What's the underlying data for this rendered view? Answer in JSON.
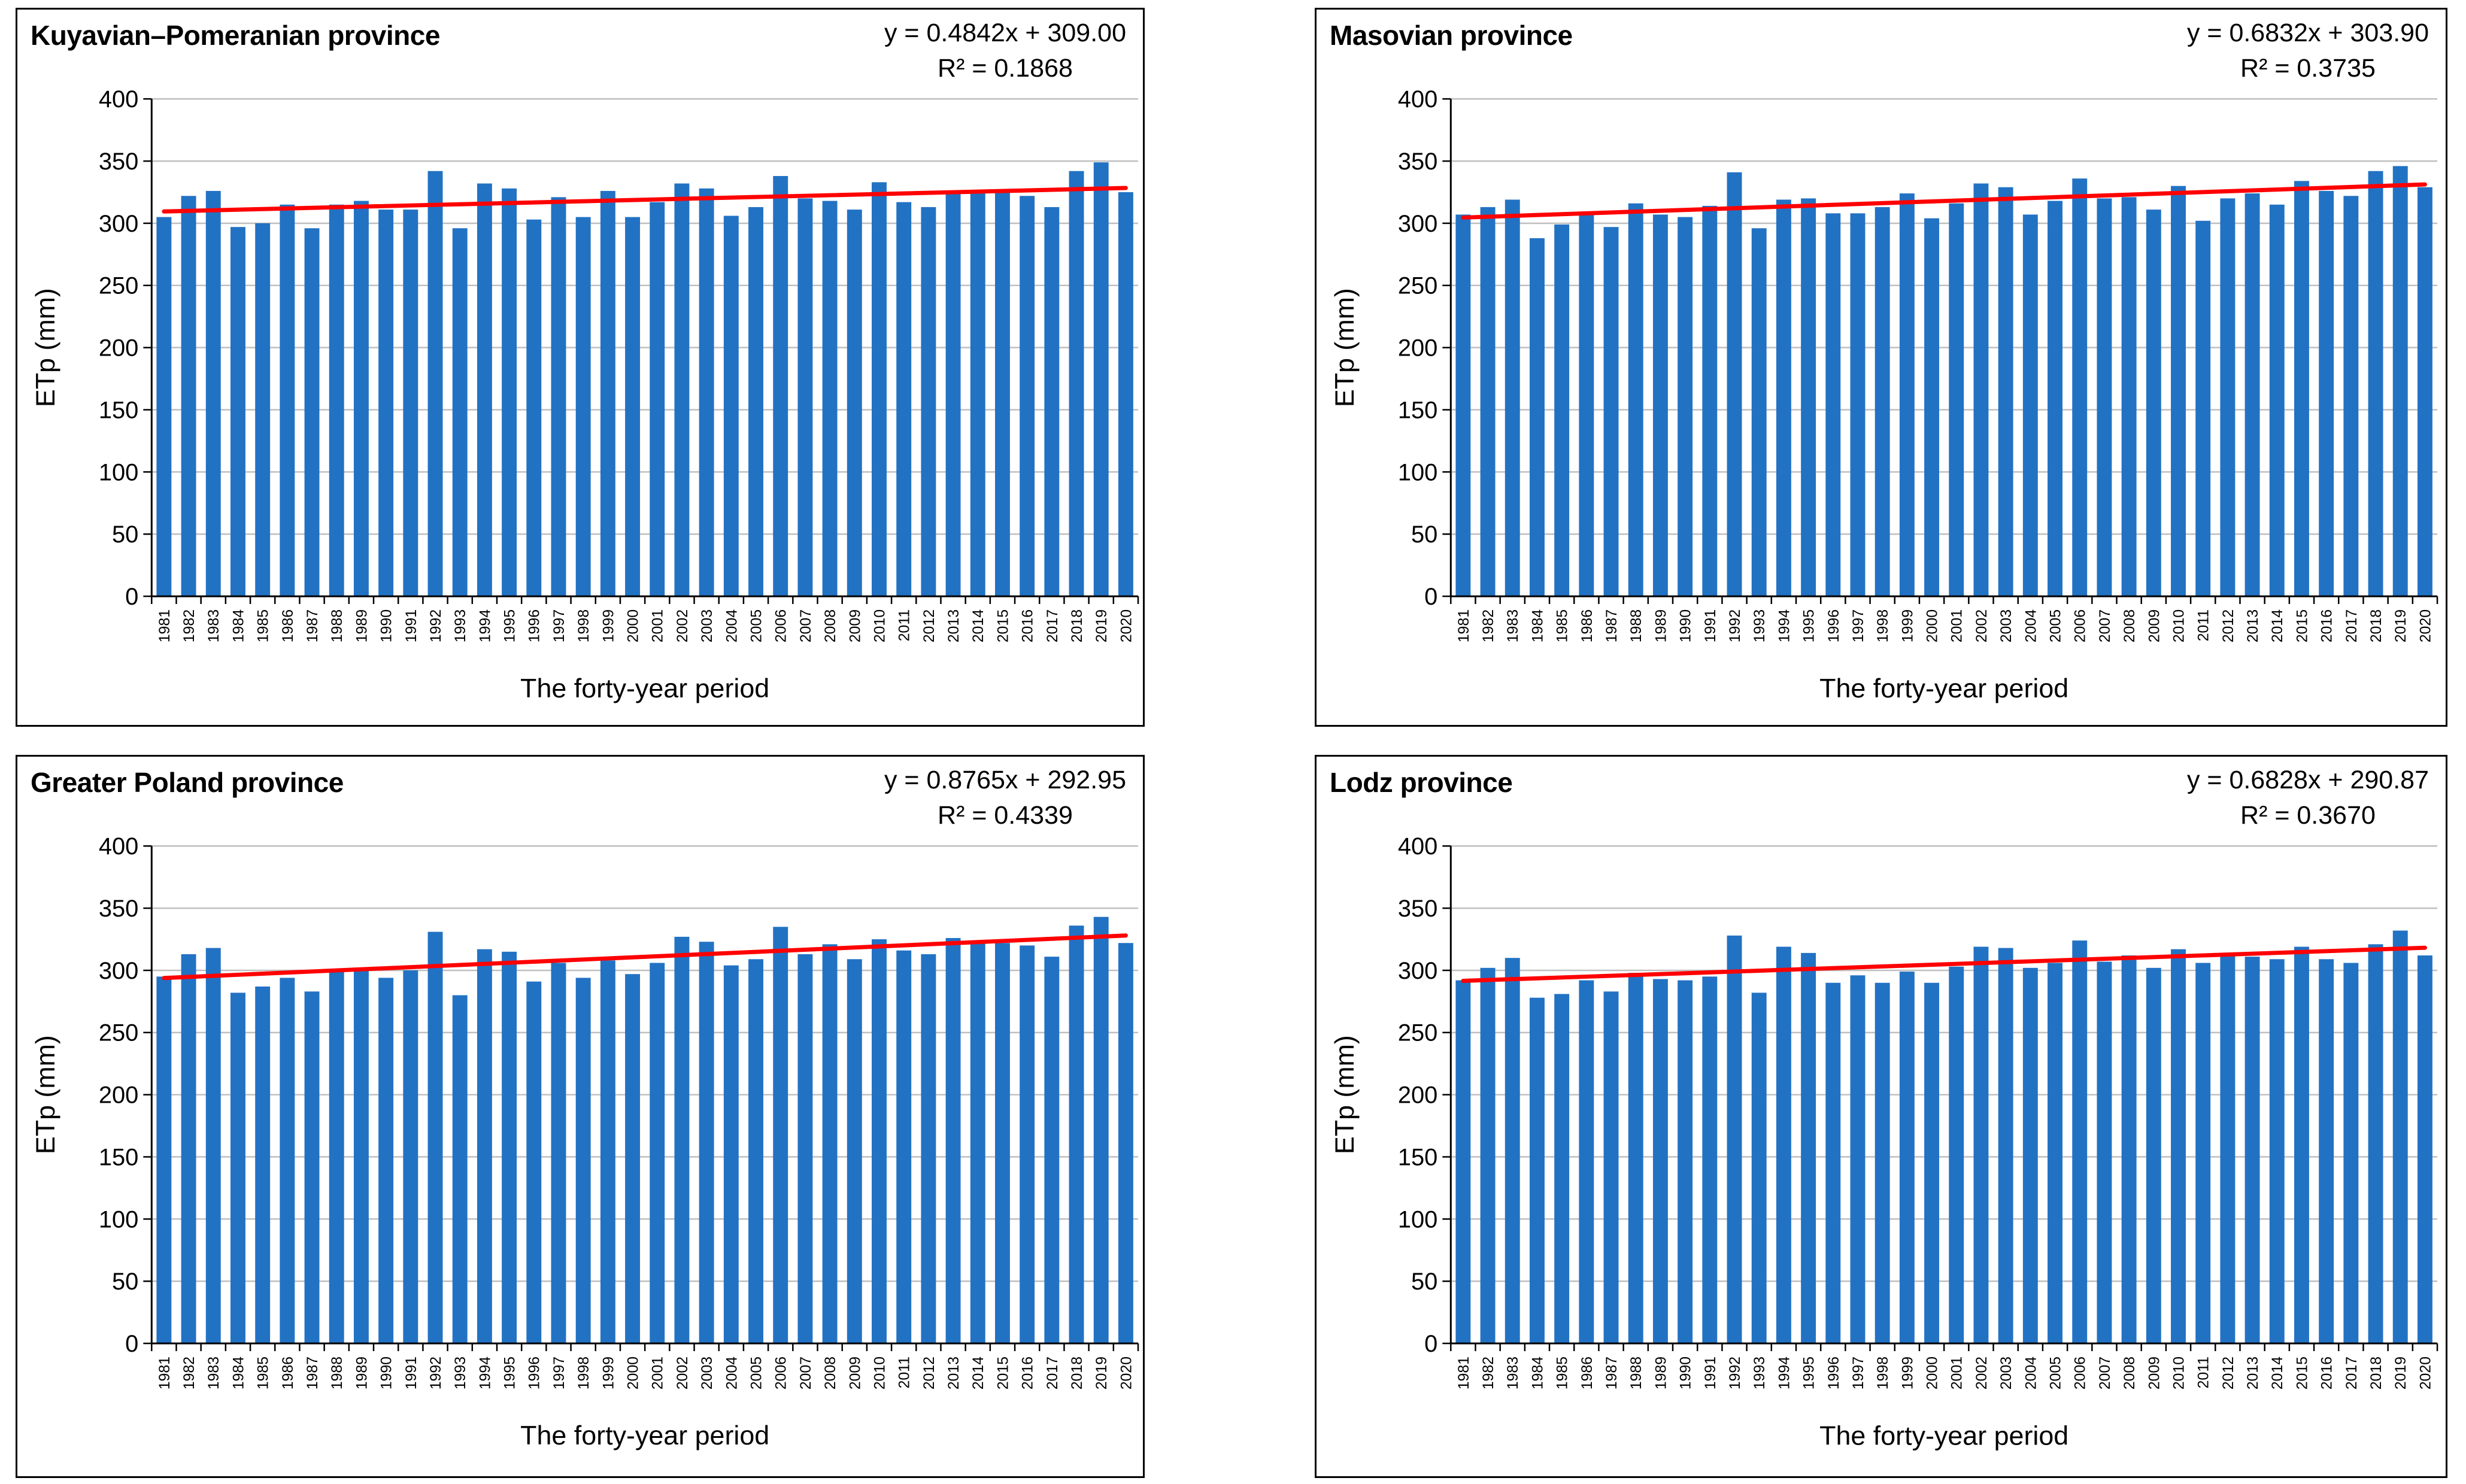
{
  "styles": {
    "bar_color": "#2272C4",
    "trend_color": "#FF0000",
    "gridline_color": "#BFBFBF",
    "axis_color": "#000000",
    "text_color": "#000000",
    "panel_border_color": "#000000"
  },
  "axis": {
    "y_label": "ETp (mm)",
    "x_label": "The forty-year period",
    "y_min": 0,
    "y_max": 400,
    "y_ticks": [
      0,
      50,
      100,
      150,
      200,
      250,
      300,
      350,
      400
    ]
  },
  "chart_data": [
    {
      "type": "bar",
      "position": "top-left",
      "title": "Kuyavian–Pomeranian province",
      "equation": "y = 0.4842x + 309.00",
      "r_squared": "R² = 0.1868",
      "trend": {
        "slope": 0.4842,
        "intercept": 309.0
      },
      "xlabel": "The forty-year period",
      "ylabel": "ETp (mm)",
      "ylim": [
        0,
        400
      ],
      "grid": true,
      "legend": "none",
      "categories": [
        "1981",
        "1982",
        "1983",
        "1984",
        "1985",
        "1986",
        "1987",
        "1988",
        "1989",
        "1990",
        "1991",
        "1992",
        "1993",
        "1994",
        "1995",
        "1996",
        "1997",
        "1998",
        "1999",
        "2000",
        "2001",
        "2002",
        "2003",
        "2004",
        "2005",
        "2006",
        "2007",
        "2008",
        "2009",
        "2010",
        "2011",
        "2012",
        "2013",
        "2014",
        "2015",
        "2016",
        "2017",
        "2018",
        "2019",
        "2020"
      ],
      "values": [
        305,
        322,
        326,
        297,
        300,
        315,
        296,
        315,
        318,
        311,
        311,
        342,
        296,
        332,
        328,
        303,
        321,
        305,
        326,
        305,
        317,
        332,
        328,
        306,
        313,
        338,
        320,
        318,
        311,
        333,
        317,
        313,
        324,
        324,
        325,
        322,
        313,
        342,
        349,
        325
      ]
    },
    {
      "type": "bar",
      "position": "top-right",
      "title": "Masovian province",
      "equation": "y = 0.6832x + 303.90",
      "r_squared": "R² = 0.3735",
      "trend": {
        "slope": 0.6832,
        "intercept": 303.9
      },
      "xlabel": "The forty-year period",
      "ylabel": "ETp (mm)",
      "ylim": [
        0,
        400
      ],
      "grid": true,
      "legend": "none",
      "categories": [
        "1981",
        "1982",
        "1983",
        "1984",
        "1985",
        "1986",
        "1987",
        "1988",
        "1989",
        "1990",
        "1991",
        "1992",
        "1993",
        "1994",
        "1995",
        "1996",
        "1997",
        "1998",
        "1999",
        "2000",
        "2001",
        "2002",
        "2003",
        "2004",
        "2005",
        "2006",
        "2007",
        "2008",
        "2009",
        "2010",
        "2011",
        "2012",
        "2013",
        "2014",
        "2015",
        "2016",
        "2017",
        "2018",
        "2019",
        "2020"
      ],
      "values": [
        307,
        313,
        319,
        288,
        299,
        309,
        297,
        316,
        307,
        305,
        314,
        341,
        296,
        319,
        320,
        308,
        308,
        313,
        324,
        304,
        316,
        332,
        329,
        307,
        318,
        336,
        320,
        321,
        311,
        330,
        302,
        320,
        324,
        315,
        334,
        326,
        322,
        342,
        346,
        329
      ]
    },
    {
      "type": "bar",
      "position": "bottom-left",
      "title": "Greater Poland province",
      "equation": "y = 0.8765x + 292.95",
      "r_squared": "R² = 0.4339",
      "trend": {
        "slope": 0.8765,
        "intercept": 292.95
      },
      "xlabel": "The forty-year period",
      "ylabel": "ETp (mm)",
      "ylim": [
        0,
        400
      ],
      "grid": true,
      "legend": "none",
      "categories": [
        "1981",
        "1982",
        "1983",
        "1984",
        "1985",
        "1986",
        "1987",
        "1988",
        "1989",
        "1990",
        "1991",
        "1992",
        "1993",
        "1994",
        "1995",
        "1996",
        "1997",
        "1998",
        "1999",
        "2000",
        "2001",
        "2002",
        "2003",
        "2004",
        "2005",
        "2006",
        "2007",
        "2008",
        "2009",
        "2010",
        "2011",
        "2012",
        "2013",
        "2014",
        "2015",
        "2016",
        "2017",
        "2018",
        "2019",
        "2020"
      ],
      "values": [
        295,
        313,
        318,
        282,
        287,
        294,
        283,
        299,
        302,
        294,
        300,
        331,
        280,
        317,
        315,
        291,
        306,
        294,
        308,
        297,
        306,
        327,
        323,
        304,
        309,
        335,
        313,
        321,
        309,
        325,
        316,
        313,
        326,
        323,
        322,
        320,
        311,
        336,
        343,
        322
      ]
    },
    {
      "type": "bar",
      "position": "bottom-right",
      "title": "Lodz province",
      "equation": "y = 0.6828x + 290.87",
      "r_squared": "R² = 0.3670",
      "trend": {
        "slope": 0.6828,
        "intercept": 290.87
      },
      "xlabel": "The forty-year period",
      "ylabel": "ETp (mm)",
      "ylim": [
        0,
        400
      ],
      "grid": true,
      "legend": "none",
      "categories": [
        "1981",
        "1982",
        "1983",
        "1984",
        "1985",
        "1986",
        "1987",
        "1988",
        "1989",
        "1990",
        "1991",
        "1992",
        "1993",
        "1994",
        "1995",
        "1996",
        "1997",
        "1998",
        "1999",
        "2000",
        "2001",
        "2002",
        "2003",
        "2004",
        "2005",
        "2006",
        "2007",
        "2008",
        "2009",
        "2010",
        "2011",
        "2012",
        "2013",
        "2014",
        "2015",
        "2016",
        "2017",
        "2018",
        "2019",
        "2020"
      ],
      "values": [
        292,
        302,
        310,
        278,
        281,
        292,
        283,
        298,
        293,
        292,
        295,
        328,
        282,
        319,
        314,
        290,
        296,
        290,
        299,
        290,
        303,
        319,
        318,
        302,
        306,
        324,
        307,
        312,
        302,
        317,
        306,
        312,
        311,
        309,
        319,
        309,
        306,
        321,
        332,
        312
      ]
    }
  ]
}
